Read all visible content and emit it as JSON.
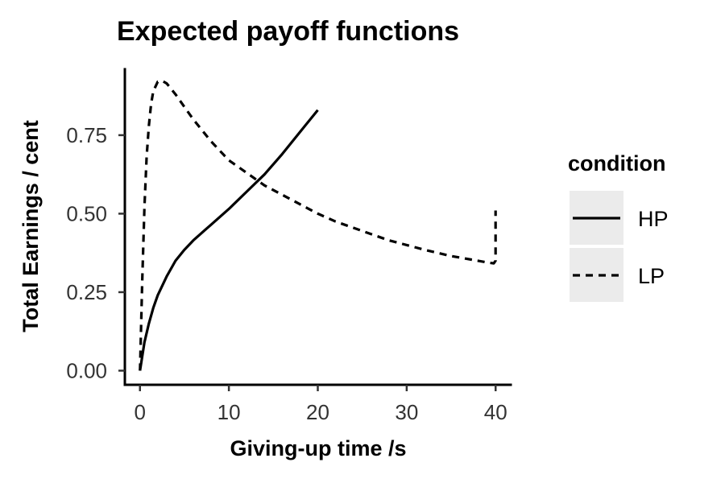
{
  "chart_data": {
    "type": "line",
    "title": "Expected payoff functions",
    "xlabel": "Giving-up time /s",
    "ylabel": "Total Earnings / cent",
    "xlim": [
      -1.7,
      41.7
    ],
    "ylim": [
      -0.045,
      0.96
    ],
    "x_ticks": [
      0,
      10,
      20,
      30,
      40
    ],
    "x_tick_labels": [
      "0",
      "10",
      "20",
      "30",
      "40"
    ],
    "y_ticks": [
      0,
      0.25,
      0.5,
      0.75
    ],
    "y_tick_labels": [
      "0.00",
      "0.25",
      "0.50",
      "0.75"
    ],
    "grid": false,
    "legend": {
      "title": "condition",
      "position": "right"
    },
    "series": [
      {
        "name": "HP",
        "line_style": "solid",
        "color": "#000000",
        "x": [
          0,
          0.5,
          1,
          1.5,
          2,
          3,
          4,
          5,
          6,
          7,
          8,
          9,
          10,
          12,
          14,
          16,
          18,
          20
        ],
        "y": [
          0,
          0.09,
          0.15,
          0.2,
          0.24,
          0.3,
          0.35,
          0.385,
          0.415,
          0.44,
          0.465,
          0.49,
          0.515,
          0.57,
          0.625,
          0.69,
          0.76,
          0.83
        ]
      },
      {
        "name": "LP",
        "line_style": "dashed",
        "color": "#000000",
        "x": [
          0,
          0.25,
          0.5,
          0.75,
          1,
          1.25,
          1.5,
          2,
          2.5,
          3,
          4,
          5,
          6,
          8,
          10,
          12,
          14,
          16,
          18,
          20,
          22,
          25,
          28,
          30,
          32,
          35,
          38,
          39,
          39.5,
          39.8,
          40,
          40
        ],
        "y": [
          0,
          0.28,
          0.52,
          0.68,
          0.78,
          0.85,
          0.89,
          0.92,
          0.923,
          0.915,
          0.88,
          0.84,
          0.8,
          0.73,
          0.67,
          0.63,
          0.59,
          0.56,
          0.53,
          0.5,
          0.475,
          0.445,
          0.415,
          0.4,
          0.385,
          0.365,
          0.35,
          0.345,
          0.343,
          0.342,
          0.35,
          0.51
        ]
      }
    ]
  }
}
